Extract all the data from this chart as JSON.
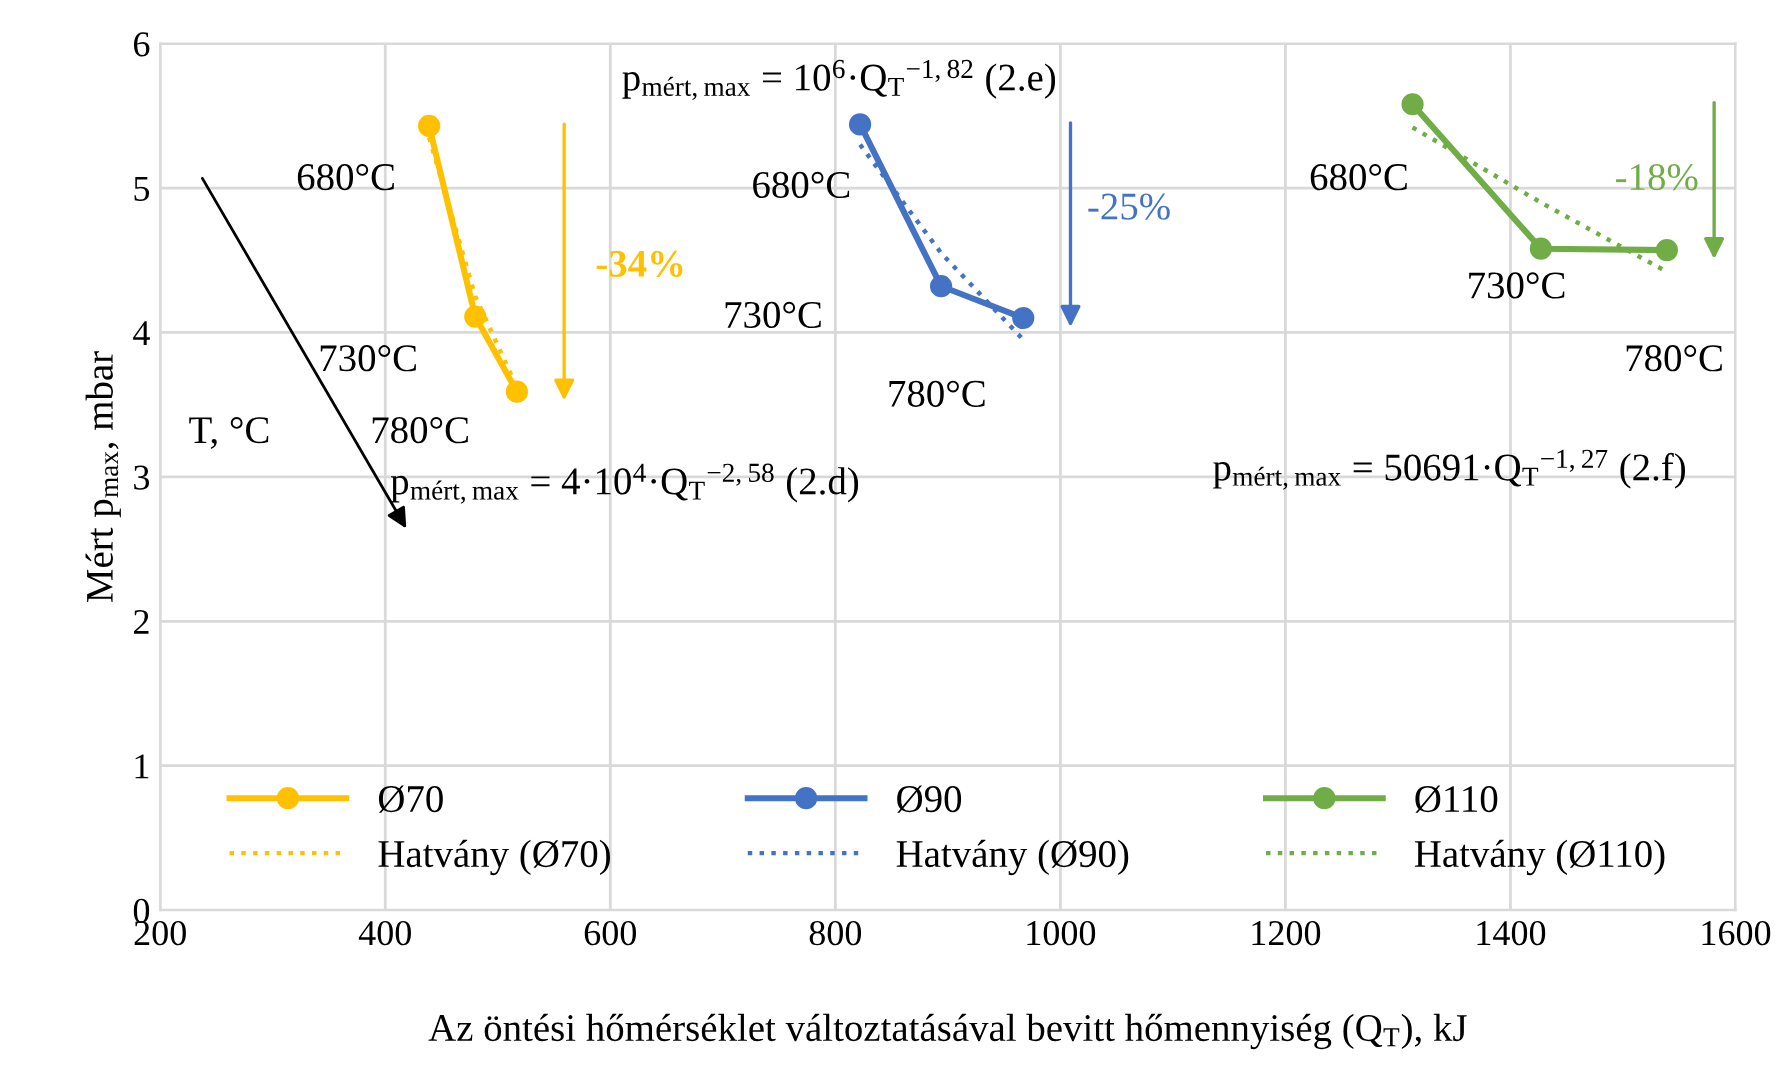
{
  "chart_data": {
    "type": "line",
    "xlabel": "Az öntési hőmérséklet változtatásával bevitt hőmennyiség (Q$_{T}$), kJ",
    "ylabel": "Mért p$_{max}$, mbar",
    "xlim": [
      200,
      1600
    ],
    "xticks": [
      200,
      400,
      600,
      800,
      1000,
      1200,
      1400,
      1600
    ],
    "ylim": [
      0,
      6
    ],
    "yticks": [
      0,
      1,
      2,
      3,
      4,
      5,
      6
    ],
    "grid": true,
    "legend": "bottom",
    "marker": "circle",
    "series": [
      {
        "name": "Ø70",
        "color": "#ffc000",
        "x": [
          439,
          480,
          517
        ],
        "values": [
          5.43,
          4.11,
          3.59
        ]
      },
      {
        "name": "Hatvány (Ø70)",
        "color": "#ffc000",
        "type": "line",
        "marker": "none",
        "line_style": "dotted",
        "x": [
          439,
          480,
          517
        ],
        "values": [
          5.35,
          4.25,
          3.62
        ]
      },
      {
        "name": "Ø90",
        "color": "#4472c4",
        "x": [
          822,
          894,
          967
        ],
        "values": [
          5.44,
          4.32,
          4.1
        ]
      },
      {
        "name": "Hatvány (Ø90)",
        "color": "#4472c4",
        "type": "line",
        "marker": "none",
        "line_style": "dotted",
        "x": [
          822,
          894,
          967
        ],
        "values": [
          5.3,
          4.55,
          3.95
        ]
      },
      {
        "name": "Ø110",
        "color": "#70ad47",
        "x": [
          1313,
          1427,
          1539
        ],
        "values": [
          5.58,
          4.58,
          4.57
        ]
      },
      {
        "name": "Hatvány (Ø110)",
        "color": "#70ad47",
        "type": "line",
        "marker": "none",
        "line_style": "dotted",
        "x": [
          1313,
          1427,
          1539
        ],
        "values": [
          5.42,
          4.9,
          4.42
        ]
      }
    ],
    "annotations": [
      "680°C",
      "730°C",
      "780°C",
      "680°C",
      "730°C",
      "780°C",
      "680°C",
      "730°C",
      "780°C",
      "-34%",
      "-25%",
      "-18%",
      "T, °C",
      "p$_{mért,max}$ = 4·10$^{4}$·Q$_{T}$$^{−2,58}$ (2.d)",
      "p$_{mért,max}$ = 10$^{6}$·Q$_{T}$$^{−1,82}$ (2.e)",
      "p$_{mért,max}$ = 50691·Q$_{T}$$^{−1,27}$ (2.f)"
    ]
  }
}
